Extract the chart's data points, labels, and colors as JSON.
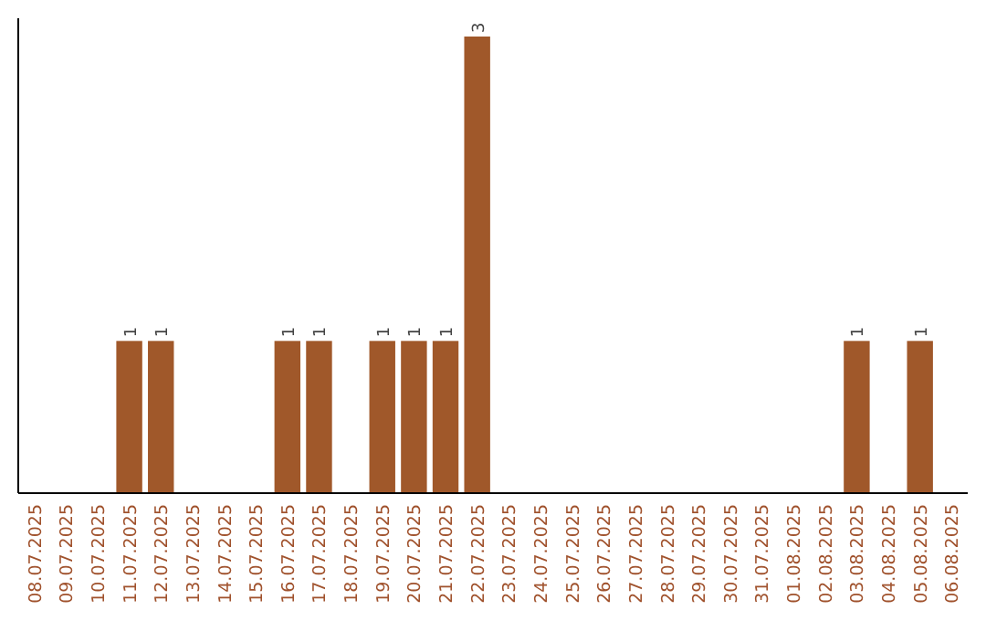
{
  "chart_data": {
    "type": "bar",
    "categories": [
      "08.07.2025",
      "09.07.2025",
      "10.07.2025",
      "11.07.2025",
      "12.07.2025",
      "13.07.2025",
      "14.07.2025",
      "15.07.2025",
      "16.07.2025",
      "17.07.2025",
      "18.07.2025",
      "19.07.2025",
      "20.07.2025",
      "21.07.2025",
      "22.07.2025",
      "23.07.2025",
      "24.07.2025",
      "25.07.2025",
      "26.07.2025",
      "27.07.2025",
      "28.07.2025",
      "29.07.2025",
      "30.07.2025",
      "31.07.2025",
      "01.08.2025",
      "02.08.2025",
      "03.08.2025",
      "04.08.2025",
      "05.08.2025",
      "06.08.2025"
    ],
    "values": [
      0,
      0,
      0,
      1,
      1,
      0,
      0,
      0,
      1,
      1,
      0,
      1,
      1,
      1,
      3,
      0,
      0,
      0,
      0,
      0,
      0,
      0,
      0,
      0,
      0,
      0,
      1,
      0,
      1,
      0
    ],
    "value_labels": [
      null,
      null,
      null,
      "1",
      "1",
      null,
      null,
      null,
      "1",
      "1",
      null,
      "1",
      "1",
      "1",
      "3",
      null,
      null,
      null,
      null,
      null,
      null,
      null,
      null,
      null,
      null,
      null,
      "1",
      null,
      "1",
      null
    ],
    "color": "#a0582a",
    "tick_labels": "x"
  }
}
